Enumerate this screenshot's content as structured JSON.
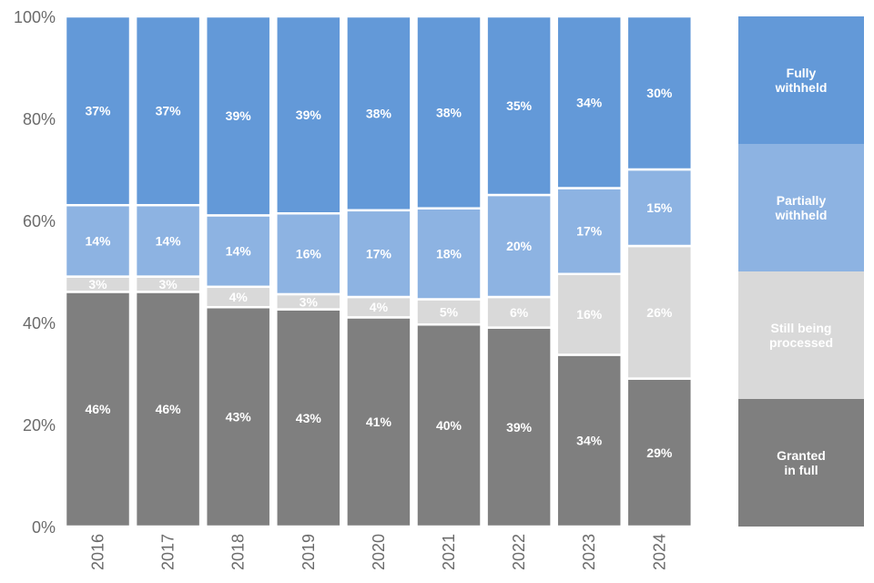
{
  "chart_data": {
    "type": "bar",
    "stacked": true,
    "normalized": true,
    "categories": [
      "2016",
      "2017",
      "2018",
      "2019",
      "2020",
      "2021",
      "2022",
      "2023",
      "2024"
    ],
    "series": [
      {
        "name": "Granted in full",
        "legend_lines": [
          "Granted",
          "in full"
        ],
        "color": "#7f7f7f",
        "values": [
          46,
          46,
          43,
          43,
          41,
          40,
          39,
          34,
          29
        ]
      },
      {
        "name": "Still being processed",
        "legend_lines": [
          "Still being",
          "processed"
        ],
        "color": "#d9d9d9",
        "values": [
          3,
          3,
          4,
          3,
          4,
          5,
          6,
          16,
          26
        ]
      },
      {
        "name": "Partially withheld",
        "legend_lines": [
          "Partially",
          "withheld"
        ],
        "color": "#8db3e2",
        "values": [
          14,
          14,
          14,
          16,
          17,
          18,
          20,
          17,
          15
        ]
      },
      {
        "name": "Fully withheld",
        "legend_lines": [
          "Fully",
          "withheld"
        ],
        "color": "#6399d8",
        "values": [
          37,
          37,
          39,
          39,
          38,
          38,
          35,
          34,
          30
        ]
      }
    ],
    "yticks": [
      "0%",
      "20%",
      "40%",
      "60%",
      "80%",
      "100%"
    ],
    "ylim": [
      0,
      100
    ],
    "data_label_suffix": "%",
    "legend_position": "right",
    "grid": false
  }
}
